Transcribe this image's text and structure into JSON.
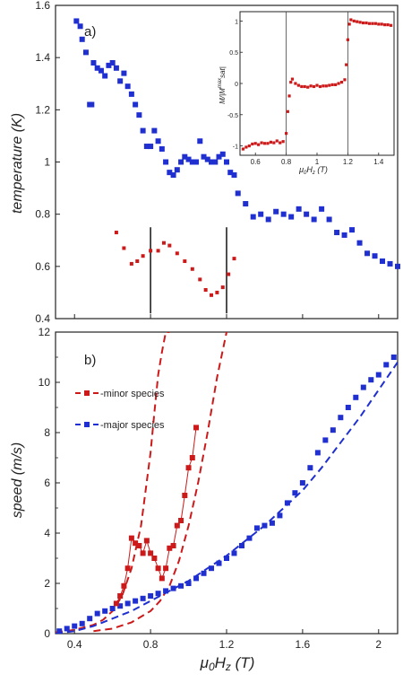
{
  "chart_data": [
    {
      "panel": "a)",
      "type": "scatter",
      "ylabel": "temperature (K)",
      "xlim": [
        0.3,
        2.1
      ],
      "ylim": [
        0.4,
        1.6
      ],
      "yticks": [
        "0.4",
        "0.6",
        "0.8",
        "1",
        "1.2",
        "1.4",
        "1.6"
      ],
      "vlines": [
        0.8,
        1.2
      ],
      "colors": {
        "major": "#1f2fd0",
        "minor": "#cc1a1a"
      },
      "series": [
        {
          "key": "major",
          "x": [
            0.41,
            0.43,
            0.44,
            0.46,
            0.48,
            0.49,
            0.5,
            0.52,
            0.54,
            0.56,
            0.58,
            0.6,
            0.62,
            0.64,
            0.66,
            0.68,
            0.7,
            0.72,
            0.74,
            0.76,
            0.78,
            0.8,
            0.82,
            0.84,
            0.86,
            0.88,
            0.9,
            0.92,
            0.94,
            0.96,
            0.98,
            1.0,
            1.02,
            1.04,
            1.06,
            1.08,
            1.1,
            1.12,
            1.14,
            1.16,
            1.18,
            1.2,
            1.22,
            1.24,
            1.26,
            1.3,
            1.34,
            1.38,
            1.42,
            1.46,
            1.5,
            1.54,
            1.58,
            1.62,
            1.66,
            1.7,
            1.74,
            1.78,
            1.82,
            1.86,
            1.9,
            1.94,
            1.98,
            2.02,
            2.06,
            2.1
          ],
          "y": [
            1.54,
            1.52,
            1.47,
            1.42,
            1.22,
            1.22,
            1.38,
            1.36,
            1.35,
            1.33,
            1.37,
            1.38,
            1.36,
            1.31,
            1.34,
            1.29,
            1.26,
            1.22,
            1.18,
            1.12,
            1.06,
            1.06,
            1.12,
            1.08,
            1.05,
            1.0,
            0.96,
            0.95,
            0.97,
            1.0,
            1.02,
            1.01,
            1.0,
            1.0,
            1.08,
            1.02,
            1.01,
            1.0,
            1.0,
            1.02,
            1.03,
            1.0,
            0.96,
            0.95,
            0.88,
            0.84,
            0.79,
            0.8,
            0.78,
            0.81,
            0.8,
            0.79,
            0.82,
            0.8,
            0.78,
            0.82,
            0.78,
            0.73,
            0.72,
            0.74,
            0.69,
            0.65,
            0.64,
            0.62,
            0.61,
            0.6
          ]
        },
        {
          "key": "minor",
          "x": [
            0.62,
            0.66,
            0.7,
            0.73,
            0.76,
            0.8,
            0.84,
            0.87,
            0.9,
            0.94,
            0.98,
            1.02,
            1.06,
            1.09,
            1.12,
            1.15,
            1.18,
            1.21,
            1.24
          ],
          "y": [
            0.73,
            0.67,
            0.61,
            0.62,
            0.64,
            0.66,
            0.66,
            0.69,
            0.68,
            0.65,
            0.62,
            0.59,
            0.55,
            0.51,
            0.49,
            0.5,
            0.52,
            0.57,
            0.63
          ]
        }
      ],
      "inset": {
        "type": "scatter",
        "xlim": [
          0.5,
          1.5
        ],
        "ylim": [
          -1.15,
          1.15
        ],
        "xticks": [
          "0.6",
          "0.8",
          "1",
          "1.2",
          "1.4"
        ],
        "yticks": [
          "-1",
          "-0.5",
          "0",
          "0.5",
          "1"
        ],
        "vlines": [
          0.8,
          1.2
        ],
        "x": [
          0.52,
          0.54,
          0.56,
          0.58,
          0.6,
          0.62,
          0.64,
          0.66,
          0.68,
          0.7,
          0.72,
          0.74,
          0.76,
          0.78,
          0.8,
          0.81,
          0.82,
          0.83,
          0.84,
          0.86,
          0.88,
          0.9,
          0.92,
          0.94,
          0.96,
          0.98,
          1.0,
          1.02,
          1.04,
          1.06,
          1.08,
          1.1,
          1.12,
          1.14,
          1.16,
          1.18,
          1.19,
          1.2,
          1.21,
          1.22,
          1.24,
          1.26,
          1.28,
          1.3,
          1.32,
          1.34,
          1.36,
          1.38,
          1.4,
          1.42,
          1.44,
          1.46,
          1.48
        ],
        "y": [
          -1.05,
          -1.02,
          -1.0,
          -0.97,
          -0.96,
          -0.98,
          -0.95,
          -0.96,
          -0.96,
          -0.94,
          -0.95,
          -0.92,
          -0.95,
          -0.93,
          -0.8,
          -0.45,
          -0.2,
          0.02,
          0.07,
          0.0,
          -0.03,
          -0.05,
          -0.05,
          -0.06,
          -0.04,
          -0.05,
          -0.03,
          -0.05,
          -0.04,
          -0.04,
          -0.03,
          -0.02,
          -0.02,
          0.0,
          0.02,
          0.06,
          0.3,
          0.7,
          0.95,
          1.02,
          1.0,
          0.99,
          0.98,
          0.97,
          0.97,
          0.96,
          0.96,
          0.96,
          0.95,
          0.95,
          0.94,
          0.94,
          0.93
        ]
      }
    },
    {
      "panel": "b)",
      "type": "line",
      "xlabel": "μ0Hz (T)",
      "ylabel": "speed (m/s)",
      "xlim": [
        0.3,
        2.1
      ],
      "ylim": [
        0,
        12
      ],
      "xticks": [
        "0.4",
        "0.8",
        "1.2",
        "1.6",
        "2"
      ],
      "yticks": [
        "0",
        "2",
        "4",
        "6",
        "8",
        "10",
        "12"
      ],
      "legend": [
        "-minor species",
        "-major species"
      ],
      "legend_position": "upper-left",
      "colors": {
        "major": "#1f2fd0",
        "minor": "#cc1a1a"
      },
      "series": [
        {
          "key": "minor",
          "x": [
            0.62,
            0.64,
            0.66,
            0.68,
            0.7,
            0.72,
            0.74,
            0.76,
            0.78,
            0.8,
            0.82,
            0.84,
            0.86,
            0.88,
            0.9,
            0.92,
            0.94,
            0.96,
            0.98,
            1.0,
            1.02,
            1.04
          ],
          "y": [
            1.2,
            1.5,
            1.9,
            2.6,
            3.8,
            3.6,
            3.5,
            3.2,
            3.7,
            3.2,
            3.0,
            2.6,
            2.2,
            2.6,
            3.4,
            3.5,
            4.3,
            4.5,
            5.5,
            6.6,
            7.0,
            8.2
          ]
        },
        {
          "key": "major",
          "x": [
            0.32,
            0.36,
            0.4,
            0.44,
            0.48,
            0.52,
            0.56,
            0.6,
            0.64,
            0.68,
            0.72,
            0.76,
            0.8,
            0.84,
            0.88,
            0.92,
            0.96,
            1.0,
            1.04,
            1.08,
            1.12,
            1.16,
            1.2,
            1.24,
            1.28,
            1.32,
            1.36,
            1.4,
            1.44,
            1.48,
            1.52,
            1.56,
            1.6,
            1.64,
            1.68,
            1.72,
            1.76,
            1.8,
            1.84,
            1.88,
            1.92,
            1.96,
            2.0,
            2.04,
            2.08
          ],
          "y": [
            0.1,
            0.2,
            0.3,
            0.4,
            0.6,
            0.8,
            0.9,
            1.0,
            1.1,
            1.2,
            1.3,
            1.4,
            1.5,
            1.6,
            1.7,
            1.8,
            1.9,
            2.0,
            2.2,
            2.4,
            2.6,
            2.8,
            3.0,
            3.2,
            3.5,
            3.8,
            4.2,
            4.3,
            4.4,
            4.7,
            5.2,
            5.6,
            6.0,
            6.6,
            7.2,
            7.7,
            8.1,
            8.6,
            9.0,
            9.4,
            9.8,
            10.1,
            10.3,
            10.7,
            11.0
          ]
        }
      ],
      "fits": [
        {
          "key": "minor",
          "x": [
            0.3,
            0.4,
            0.5,
            0.55,
            0.6,
            0.65,
            0.7,
            0.75,
            0.8,
            0.82,
            0.84,
            0.86,
            0.88,
            0.9
          ],
          "y": [
            0.05,
            0.15,
            0.35,
            0.55,
            0.9,
            1.5,
            2.6,
            4.3,
            7.2,
            8.8,
            10.3,
            11.2,
            12.0,
            12.0
          ]
        },
        {
          "key": "minor",
          "x": [
            0.5,
            0.6,
            0.7,
            0.8,
            0.85,
            0.9,
            0.95,
            1.0,
            1.05,
            1.1,
            1.15,
            1.2
          ],
          "y": [
            0.1,
            0.2,
            0.45,
            0.9,
            1.3,
            1.9,
            2.9,
            4.3,
            6.0,
            8.0,
            10.2,
            12.0
          ]
        },
        {
          "key": "major",
          "x": [
            0.3,
            0.4,
            0.5,
            0.6,
            0.7,
            0.8,
            0.9,
            1.0,
            1.1,
            1.2,
            1.3,
            1.4,
            1.5,
            1.6,
            1.7,
            1.8,
            1.9,
            2.0,
            2.1
          ],
          "y": [
            0.0,
            0.1,
            0.3,
            0.6,
            0.9,
            1.3,
            1.7,
            2.1,
            2.6,
            3.1,
            3.7,
            4.3,
            5.0,
            5.7,
            6.6,
            7.6,
            8.6,
            9.7,
            10.8
          ]
        }
      ]
    }
  ]
}
